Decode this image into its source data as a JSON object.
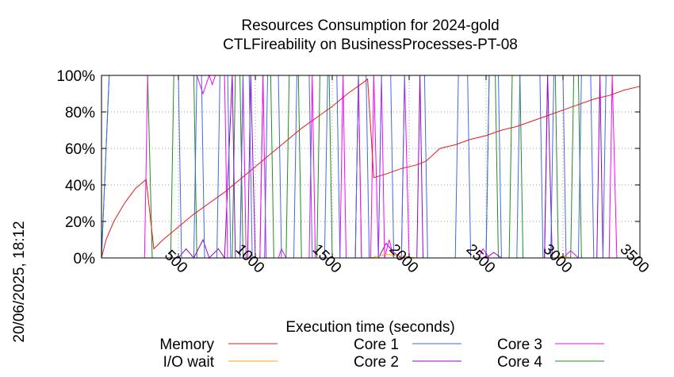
{
  "chart_data": {
    "type": "line",
    "title_line1": "Resources Consumption for 2024-gold",
    "title_line2": "CTLFireability on BusinessProcesses-PT-08",
    "xlabel": "Execution time (seconds)",
    "ylabel": "",
    "side_label": "20/06/2025, 18:12",
    "xlim": [
      0,
      3500
    ],
    "ylim": [
      0,
      100
    ],
    "x_ticks": [
      500,
      1000,
      1500,
      2000,
      2500,
      3000,
      3500
    ],
    "y_ticks": [
      0,
      20,
      40,
      60,
      80,
      100
    ],
    "y_tick_labels": [
      "0%",
      "20%",
      "40%",
      "60%",
      "80%",
      "100%"
    ],
    "grid": true,
    "legend_position": "bottom",
    "series": [
      {
        "name": "Memory",
        "color": "#e41a1c",
        "points": [
          [
            0,
            0
          ],
          [
            30,
            10
          ],
          [
            80,
            20
          ],
          [
            150,
            30
          ],
          [
            220,
            38
          ],
          [
            290,
            43
          ],
          [
            340,
            5
          ],
          [
            400,
            10
          ],
          [
            500,
            17
          ],
          [
            600,
            24
          ],
          [
            700,
            30
          ],
          [
            800,
            36
          ],
          [
            900,
            43
          ],
          [
            1000,
            50
          ],
          [
            1100,
            57
          ],
          [
            1200,
            64
          ],
          [
            1300,
            71
          ],
          [
            1400,
            77
          ],
          [
            1500,
            83
          ],
          [
            1600,
            90
          ],
          [
            1700,
            96
          ],
          [
            1730,
            98
          ],
          [
            1770,
            44
          ],
          [
            1850,
            46
          ],
          [
            1950,
            49
          ],
          [
            2050,
            51
          ],
          [
            2110,
            53
          ],
          [
            2200,
            60
          ],
          [
            2300,
            62
          ],
          [
            2400,
            65
          ],
          [
            2500,
            67
          ],
          [
            2600,
            70
          ],
          [
            2700,
            72
          ],
          [
            2800,
            75
          ],
          [
            2900,
            78
          ],
          [
            3000,
            81
          ],
          [
            3100,
            84
          ],
          [
            3200,
            87
          ],
          [
            3300,
            89
          ],
          [
            3400,
            92
          ],
          [
            3500,
            94
          ]
        ]
      },
      {
        "name": "I/O wait",
        "color": "#ffa500",
        "points": [
          [
            0,
            0
          ],
          [
            1750,
            0
          ],
          [
            1850,
            2
          ],
          [
            1950,
            1
          ],
          [
            2050,
            0
          ],
          [
            2950,
            0
          ],
          [
            3000,
            1
          ],
          [
            3050,
            0
          ],
          [
            3500,
            0
          ]
        ]
      },
      {
        "name": "Core 1",
        "color": "#4169e1",
        "points": [
          [
            0,
            0
          ],
          [
            50,
            100
          ],
          [
            500,
            100
          ],
          [
            520,
            0
          ],
          [
            600,
            0
          ],
          [
            620,
            100
          ],
          [
            650,
            100
          ],
          [
            670,
            0
          ],
          [
            750,
            0
          ],
          [
            770,
            100
          ],
          [
            820,
            100
          ],
          [
            840,
            0
          ],
          [
            900,
            0
          ],
          [
            920,
            100
          ],
          [
            960,
            100
          ],
          [
            980,
            0
          ],
          [
            1060,
            0
          ],
          [
            1080,
            100
          ],
          [
            1150,
            100
          ],
          [
            1170,
            0
          ],
          [
            1250,
            0
          ],
          [
            1270,
            100
          ],
          [
            1350,
            100
          ],
          [
            1370,
            0
          ],
          [
            1450,
            0
          ],
          [
            1470,
            100
          ],
          [
            1530,
            100
          ],
          [
            1550,
            0
          ],
          [
            1650,
            0
          ],
          [
            1670,
            100
          ],
          [
            1720,
            100
          ],
          [
            1740,
            0
          ],
          [
            1800,
            0
          ],
          [
            1820,
            100
          ],
          [
            1880,
            100
          ],
          [
            1900,
            0
          ],
          [
            1950,
            0
          ],
          [
            1970,
            100
          ],
          [
            2100,
            100
          ],
          [
            2120,
            0
          ],
          [
            2300,
            0
          ],
          [
            2320,
            100
          ],
          [
            2380,
            100
          ],
          [
            2400,
            0
          ],
          [
            2500,
            0
          ],
          [
            2520,
            100
          ],
          [
            2580,
            100
          ],
          [
            2600,
            0
          ],
          [
            2700,
            0
          ],
          [
            2720,
            100
          ],
          [
            2850,
            100
          ],
          [
            2870,
            0
          ],
          [
            2920,
            0
          ],
          [
            2940,
            100
          ],
          [
            3000,
            100
          ],
          [
            3020,
            0
          ],
          [
            3100,
            0
          ],
          [
            3120,
            100
          ],
          [
            3180,
            100
          ],
          [
            3200,
            0
          ],
          [
            3260,
            0
          ],
          [
            3280,
            100
          ],
          [
            3500,
            100
          ]
        ]
      },
      {
        "name": "Core 2",
        "color": "#9400d3",
        "points": [
          [
            0,
            0
          ],
          [
            400,
            0
          ],
          [
            500,
            0
          ],
          [
            550,
            5
          ],
          [
            600,
            0
          ],
          [
            660,
            10
          ],
          [
            700,
            0
          ],
          [
            760,
            5
          ],
          [
            800,
            0
          ],
          [
            850,
            100
          ],
          [
            870,
            0
          ],
          [
            950,
            0
          ],
          [
            970,
            100
          ],
          [
            1000,
            0
          ],
          [
            1300,
            0
          ],
          [
            1800,
            0
          ],
          [
            1850,
            8
          ],
          [
            1900,
            3
          ],
          [
            1950,
            0
          ],
          [
            2050,
            0
          ],
          [
            2070,
            100
          ],
          [
            2090,
            0
          ],
          [
            2200,
            0
          ],
          [
            2500,
            0
          ],
          [
            2550,
            3
          ],
          [
            2600,
            0
          ],
          [
            2880,
            0
          ],
          [
            2900,
            100
          ],
          [
            2930,
            0
          ],
          [
            3000,
            0
          ],
          [
            3100,
            0
          ],
          [
            3220,
            0
          ],
          [
            3240,
            100
          ],
          [
            3260,
            0
          ],
          [
            3500,
            0
          ]
        ]
      },
      {
        "name": "Core 3",
        "color": "#ff00ff",
        "points": [
          [
            0,
            0
          ],
          [
            280,
            0
          ],
          [
            300,
            100
          ],
          [
            620,
            100
          ],
          [
            660,
            90
          ],
          [
            700,
            100
          ],
          [
            720,
            95
          ],
          [
            740,
            100
          ],
          [
            800,
            100
          ],
          [
            820,
            0
          ],
          [
            900,
            0
          ],
          [
            920,
            100
          ],
          [
            940,
            0
          ],
          [
            1030,
            0
          ],
          [
            1050,
            100
          ],
          [
            1070,
            0
          ],
          [
            1150,
            0
          ],
          [
            1170,
            5
          ],
          [
            1200,
            0
          ],
          [
            1350,
            0
          ],
          [
            1370,
            100
          ],
          [
            1390,
            0
          ],
          [
            1550,
            0
          ],
          [
            1570,
            100
          ],
          [
            1590,
            0
          ],
          [
            1650,
            0
          ],
          [
            1670,
            100
          ],
          [
            1690,
            0
          ],
          [
            1750,
            0
          ],
          [
            1770,
            100
          ],
          [
            1800,
            0
          ],
          [
            1820,
            100
          ],
          [
            1840,
            0
          ],
          [
            1870,
            10
          ],
          [
            1900,
            0
          ],
          [
            1950,
            0
          ],
          [
            1970,
            100
          ],
          [
            2000,
            0
          ],
          [
            2200,
            0
          ],
          [
            2450,
            0
          ],
          [
            2480,
            5
          ],
          [
            2520,
            0
          ],
          [
            2800,
            0
          ],
          [
            3000,
            0
          ],
          [
            3050,
            4
          ],
          [
            3100,
            0
          ],
          [
            3300,
            0
          ],
          [
            3320,
            100
          ],
          [
            3350,
            0
          ],
          [
            3500,
            0
          ]
        ]
      },
      {
        "name": "Core 4",
        "color": "#228b22",
        "points": [
          [
            0,
            0
          ],
          [
            50,
            100
          ],
          [
            300,
            100
          ],
          [
            330,
            0
          ],
          [
            450,
            0
          ],
          [
            470,
            100
          ],
          [
            600,
            100
          ],
          [
            620,
            0
          ],
          [
            850,
            0
          ],
          [
            870,
            100
          ],
          [
            900,
            100
          ],
          [
            920,
            0
          ],
          [
            1030,
            0
          ],
          [
            1050,
            100
          ],
          [
            1100,
            100
          ],
          [
            1120,
            0
          ],
          [
            1200,
            0
          ],
          [
            1220,
            100
          ],
          [
            1280,
            100
          ],
          [
            1300,
            0
          ],
          [
            1400,
            0
          ],
          [
            1420,
            100
          ],
          [
            1480,
            100
          ],
          [
            1500,
            0
          ],
          [
            1650,
            0
          ],
          [
            1670,
            100
          ],
          [
            1690,
            0
          ],
          [
            2000,
            0
          ],
          [
            2500,
            0
          ],
          [
            2520,
            100
          ],
          [
            2560,
            100
          ],
          [
            2580,
            0
          ],
          [
            2650,
            0
          ],
          [
            2670,
            100
          ],
          [
            2720,
            100
          ],
          [
            2740,
            0
          ],
          [
            2880,
            0
          ],
          [
            2900,
            100
          ],
          [
            2950,
            100
          ],
          [
            2970,
            0
          ],
          [
            3050,
            0
          ],
          [
            3070,
            100
          ],
          [
            3100,
            100
          ],
          [
            3120,
            0
          ],
          [
            3500,
            0
          ]
        ]
      }
    ]
  }
}
